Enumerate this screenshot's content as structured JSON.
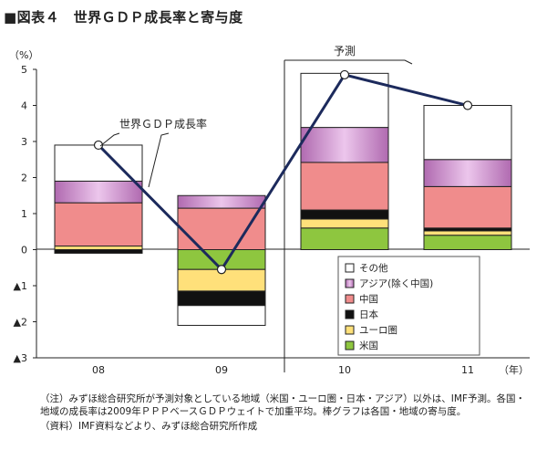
{
  "figure_title": "■図表４　世界ＧＤＰ成長率と寄与度",
  "notes": {
    "note1": "（注）みずほ総合研究所が予測対象としている地域（米国・ユーロ圏・日本・アジア）以外は、IMF予測。各国・地域の成長率は2009年ＰＰＰベースＧＤＰウェイトで加重平均。棒グラフは各国・地域の寄与度。",
    "note2": "（資料）IMF資料などより、みずほ総合研究所作成"
  },
  "chart_data": {
    "type": "bar",
    "stacked": true,
    "title": "世界ＧＤＰ成長率と寄与度",
    "ylabel": "（%）",
    "xunit": "（年）",
    "categories": [
      "08",
      "09",
      "10",
      "11"
    ],
    "ylim": [
      -3,
      5
    ],
    "yticks": [
      {
        "value": 5,
        "label": "5"
      },
      {
        "value": 4,
        "label": "4"
      },
      {
        "value": 3,
        "label": "3"
      },
      {
        "value": 2,
        "label": "2"
      },
      {
        "value": 1,
        "label": "1"
      },
      {
        "value": 0,
        "label": "0"
      },
      {
        "value": -1,
        "label": "▲1"
      },
      {
        "value": -2,
        "label": "▲2"
      },
      {
        "value": -3,
        "label": "▲3"
      }
    ],
    "forecast_label": "予測",
    "forecast_from_category": "10",
    "series": [
      {
        "name": "米国",
        "color": "#8ec63f",
        "values": [
          0.0,
          -0.55,
          0.6,
          0.4
        ]
      },
      {
        "name": "ユーロ圏",
        "color": "#ffe07a",
        "values": [
          0.1,
          -0.6,
          0.25,
          0.12
        ]
      },
      {
        "name": "日本",
        "color": "#111111",
        "values": [
          -0.1,
          -0.4,
          0.25,
          0.08
        ]
      },
      {
        "name": "中国",
        "color": "#f08c8c",
        "values": [
          1.2,
          1.15,
          1.32,
          1.15
        ]
      },
      {
        "name": "アジア(除く中国)",
        "color": "#c57ec5",
        "values": [
          0.6,
          0.35,
          0.97,
          0.75
        ]
      },
      {
        "name": "その他",
        "color": "#ffffff",
        "values": [
          1.0,
          -0.55,
          1.5,
          1.5
        ]
      }
    ],
    "line": {
      "name": "世界ＧＤＰ成長率",
      "values": [
        2.9,
        -0.55,
        4.85,
        4.0
      ],
      "color": "#1c2a5c"
    },
    "legend_placement": "bottom-right"
  }
}
